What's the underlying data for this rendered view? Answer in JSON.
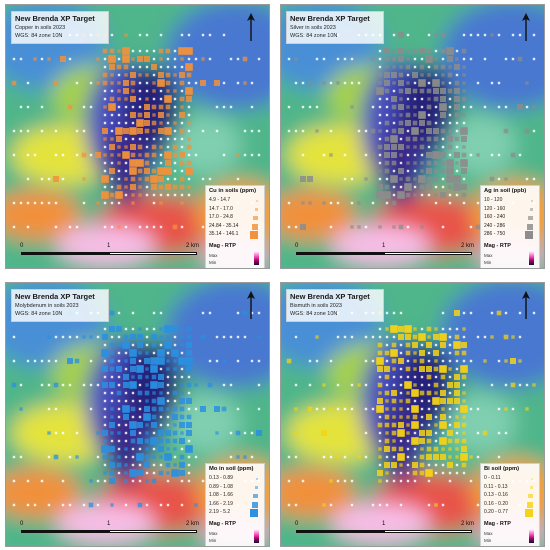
{
  "panels": [
    {
      "title": "New Brenda XP Target",
      "subtitle": "Copper in soils 2023",
      "crs": "WGS: 84 zone 10N",
      "legend_title": "Cu in soils (ppm)",
      "legend_items": [
        "4.9 - 14.7",
        "14.7 - 17.0",
        "17.0 - 24.8",
        "24.84 - 35.14",
        "35.14 - 146.1"
      ],
      "symbol_color": "#f2913a",
      "mag_label": "Mag - RTP",
      "mag_max": "Max",
      "mag_min": "Min",
      "scale": {
        "zero": "0",
        "one": "1",
        "two": "2 km"
      }
    },
    {
      "title": "New Brenda XP Target",
      "subtitle": "Silver in soils 2023",
      "crs": "WGS: 84 zone 10N",
      "legend_title": "Ag in soil (ppb)",
      "legend_items": [
        "10 - 120",
        "120 - 160",
        "160 - 240",
        "240 - 286",
        "286 - 750"
      ],
      "symbol_color": "#8c8c8c",
      "mag_label": "Mag - RTP",
      "mag_max": "Max",
      "mag_min": "Min",
      "scale": {
        "zero": "0",
        "one": "1",
        "two": "2 km"
      }
    },
    {
      "title": "New Brenda XP Target",
      "subtitle": "Molybdenum in soils 2023",
      "crs": "WGS: 84 zone 10N",
      "legend_title": "Mo in soil (ppm)",
      "legend_items": [
        "0.13 - 0.89",
        "0.89 - 1.08",
        "1.08 - 1.66",
        "1.66 - 2.19",
        "2.19 - 5.2"
      ],
      "symbol_color": "#2a8fe0",
      "mag_label": "Mag - RTP",
      "mag_max": "Max",
      "mag_min": "Min",
      "scale": {
        "zero": "0",
        "one": "1",
        "two": "2 km"
      }
    },
    {
      "title": "New Brenda XP Target",
      "subtitle": "Bismuth in soils 2023",
      "crs": "WGS: 84 zone 10N",
      "legend_title": "Bi soil (ppm)",
      "legend_items": [
        "0 - 0.11",
        "0.11 - 0.13",
        "0.13 - 0.16",
        "0.16 - 0.20",
        "0.20 - 0.77"
      ],
      "symbol_color": "#f5d314",
      "mag_label": "Mag - RTP",
      "mag_max": "Max",
      "mag_min": "Min",
      "scale": {
        "zero": "0",
        "one": "1",
        "two": "2 km"
      }
    }
  ],
  "icons": {
    "north_arrow": "north-arrow-icon"
  }
}
